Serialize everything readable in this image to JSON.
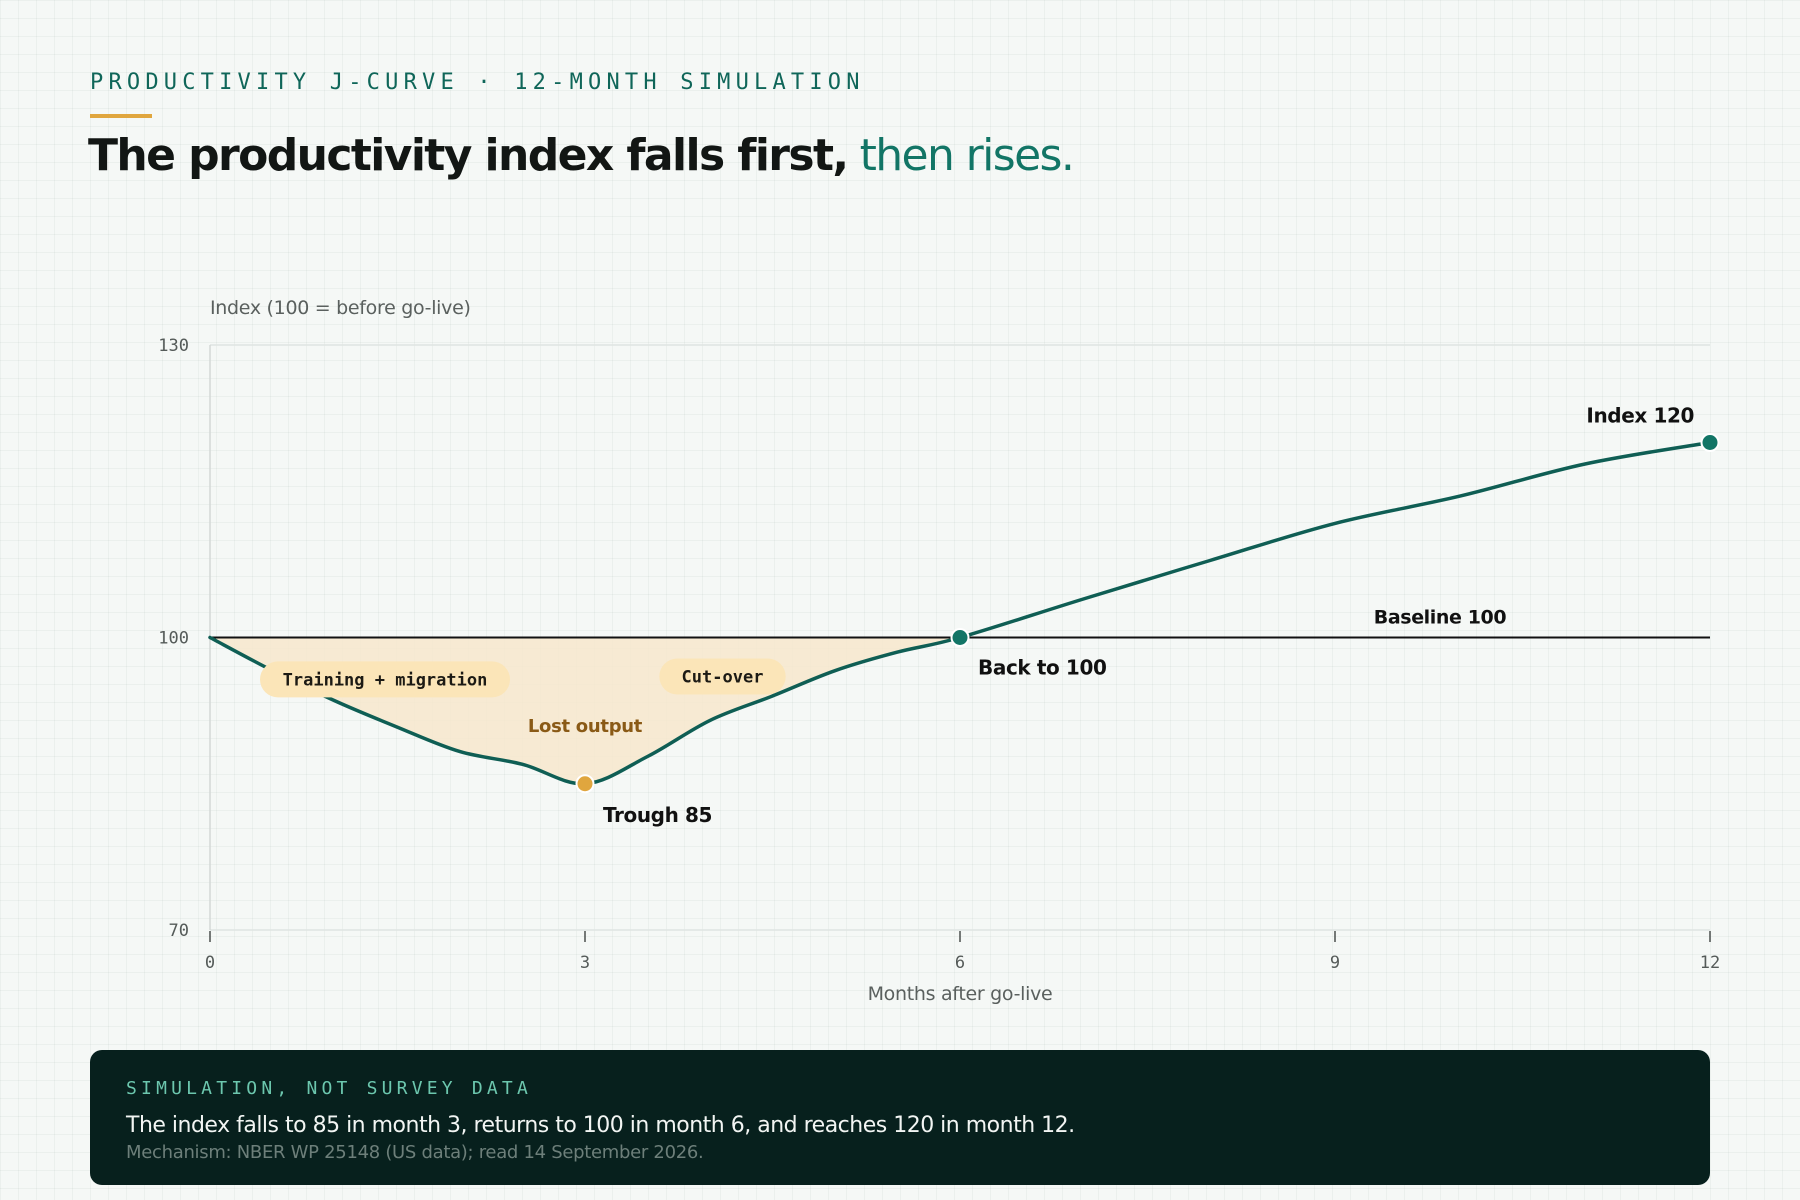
{
  "header": {
    "eyebrow": "PRODUCTIVITY J-CURVE · 12-MONTH SIMULATION",
    "headline_lead": "The productivity index falls first,",
    "headline_accent": "then rises."
  },
  "colors": {
    "curve": "#0f5e54",
    "accent_teal": "#127566",
    "trough_marker": "#e0a63e",
    "lost_fill": "#f7e7cc",
    "pill_fill": "#fbe5b8",
    "lost_label": "#8a5a16",
    "baseline": "#111111",
    "note_bg": "#07201d"
  },
  "chart_data": {
    "type": "line",
    "ylabel": "Index (100 = before go-live)",
    "xlabel": "Months after go-live",
    "xlim": [
      0,
      12
    ],
    "ylim": [
      70,
      130
    ],
    "x_ticks": [
      0,
      3,
      6,
      9,
      12
    ],
    "y_ticks": [
      70,
      100,
      130
    ],
    "grid": "horizontal",
    "series": [
      {
        "x": [
          0,
          0.5,
          1,
          1.5,
          2,
          2.5,
          3,
          3.5,
          4,
          4.5,
          5,
          5.5,
          6,
          7,
          8,
          9,
          10,
          11,
          12
        ],
        "values": [
          100,
          96.6,
          93.5,
          90.8,
          88.3,
          87.0,
          85.0,
          87.8,
          91.5,
          94.0,
          96.6,
          98.5,
          100,
          104.0,
          107.9,
          111.7,
          114.5,
          117.8,
          120
        ]
      }
    ],
    "baseline": {
      "value": 100,
      "label": "Baseline 100"
    },
    "points": [
      {
        "x": 3,
        "y": 85,
        "label": "Trough 85",
        "style": "trough"
      },
      {
        "x": 6,
        "y": 100,
        "label": "Back to 100",
        "style": "teal"
      },
      {
        "x": 12,
        "y": 120,
        "label": "Index 120",
        "style": "teal"
      }
    ],
    "phases": [
      {
        "label": "Training + migration",
        "x": 1.4,
        "y": 95.7
      },
      {
        "label": "Cut-over",
        "x": 4.1,
        "y": 96.0
      }
    ],
    "area_label": {
      "text": "Lost output",
      "x": 3.0,
      "y": 90.3
    }
  },
  "note": {
    "kicker": "SIMULATION, NOT SURVEY DATA",
    "main": "The index falls to 85 in month 3, returns to 100 in month 6, and reaches 120 in month 12.",
    "source": "Mechanism: NBER WP 25148 (US data); read 14 September 2026."
  }
}
